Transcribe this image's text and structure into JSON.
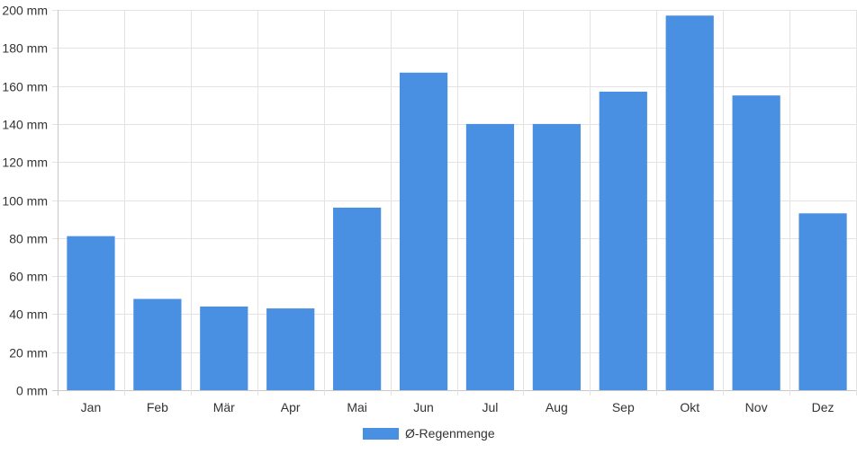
{
  "chart_data": {
    "type": "bar",
    "categories": [
      "Jan",
      "Feb",
      "Mär",
      "Apr",
      "Mai",
      "Jun",
      "Jul",
      "Aug",
      "Sep",
      "Okt",
      "Nov",
      "Dez"
    ],
    "series": [
      {
        "name": "Ø-Regenmenge",
        "values": [
          81,
          48,
          44,
          43,
          96,
          167,
          140,
          140,
          157,
          197,
          155,
          93
        ],
        "color": "#4a90e2"
      }
    ],
    "yunit": "mm",
    "ylim": [
      0,
      200
    ],
    "yticks": [
      0,
      20,
      40,
      60,
      80,
      100,
      120,
      140,
      160,
      180,
      200
    ],
    "ytick_labels": [
      "0 mm",
      "20 mm",
      "40 mm",
      "60 mm",
      "80 mm",
      "100 mm",
      "120 mm",
      "140 mm",
      "160 mm",
      "180 mm",
      "200 mm"
    ],
    "grid": true,
    "legend_position": "bottom-center"
  }
}
